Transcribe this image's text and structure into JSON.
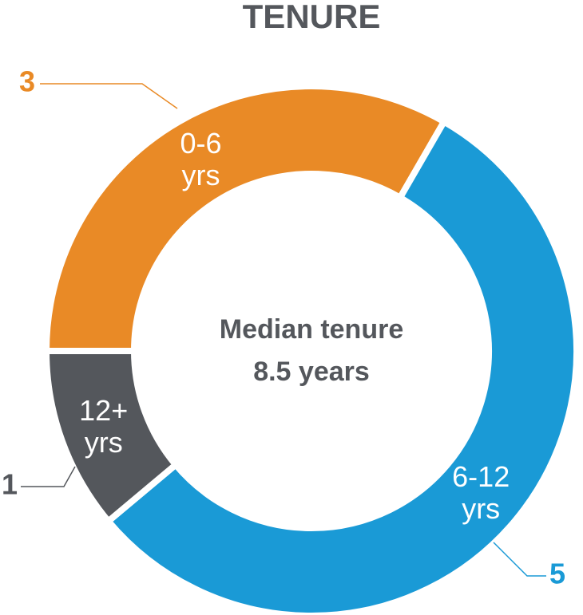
{
  "chart_data": {
    "type": "donut",
    "title": "TENURE",
    "categories": [
      "0-6 yrs",
      "6-12 yrs",
      "12+ yrs"
    ],
    "values": [
      3,
      5,
      1
    ],
    "colors": [
      "#e98a26",
      "#1a9ad6",
      "#54575c"
    ],
    "center_text": [
      "Median tenure",
      "8.5 years"
    ]
  }
}
